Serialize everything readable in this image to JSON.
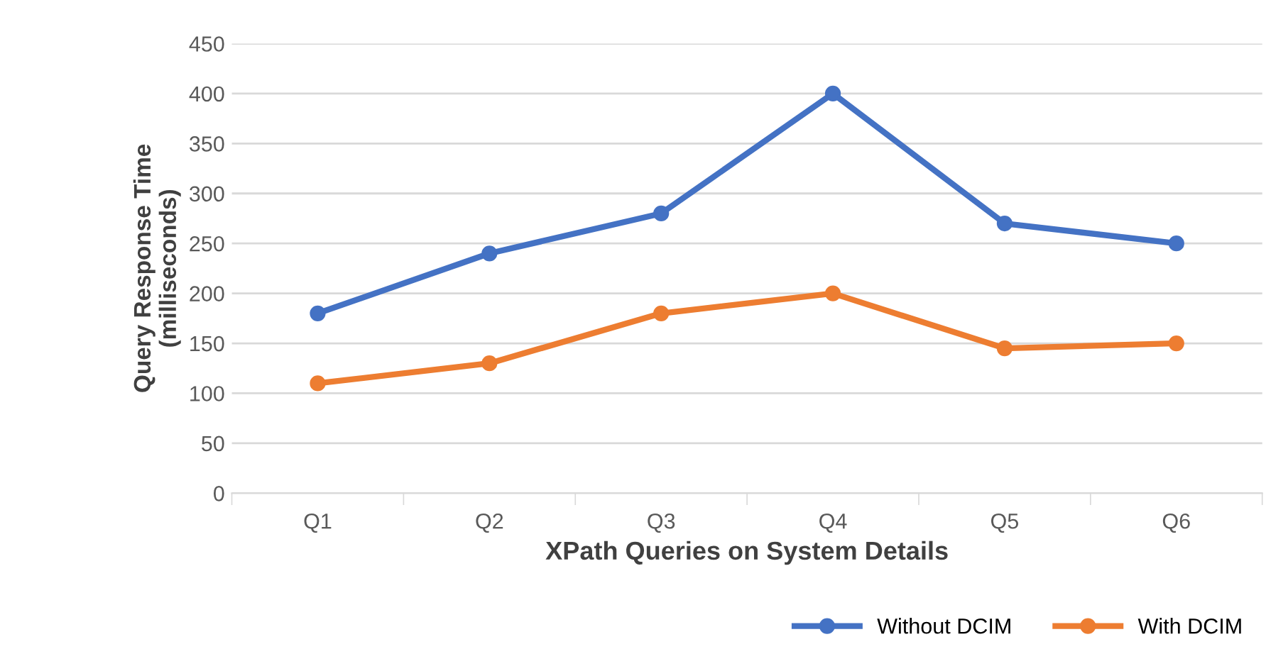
{
  "chart_data": {
    "type": "line",
    "xlabel": "XPath Queries on System Details",
    "ylabel": "Query Response Time\n(milliseconds)",
    "categories": [
      "Q1",
      "Q2",
      "Q3",
      "Q4",
      "Q5",
      "Q6"
    ],
    "series": [
      {
        "name": "Without DCIM",
        "color": "#4472c4",
        "values": [
          180,
          240,
          280,
          400,
          270,
          250
        ]
      },
      {
        "name": "With DCIM",
        "color": "#ed7d31",
        "values": [
          110,
          130,
          180,
          200,
          145,
          150
        ]
      }
    ],
    "ylim": [
      0,
      450
    ],
    "yticks": [
      0,
      50,
      100,
      150,
      200,
      250,
      300,
      350,
      400,
      450
    ],
    "grid": "y",
    "legend": "bottom right",
    "marker": "circle",
    "line_style": "solid"
  }
}
